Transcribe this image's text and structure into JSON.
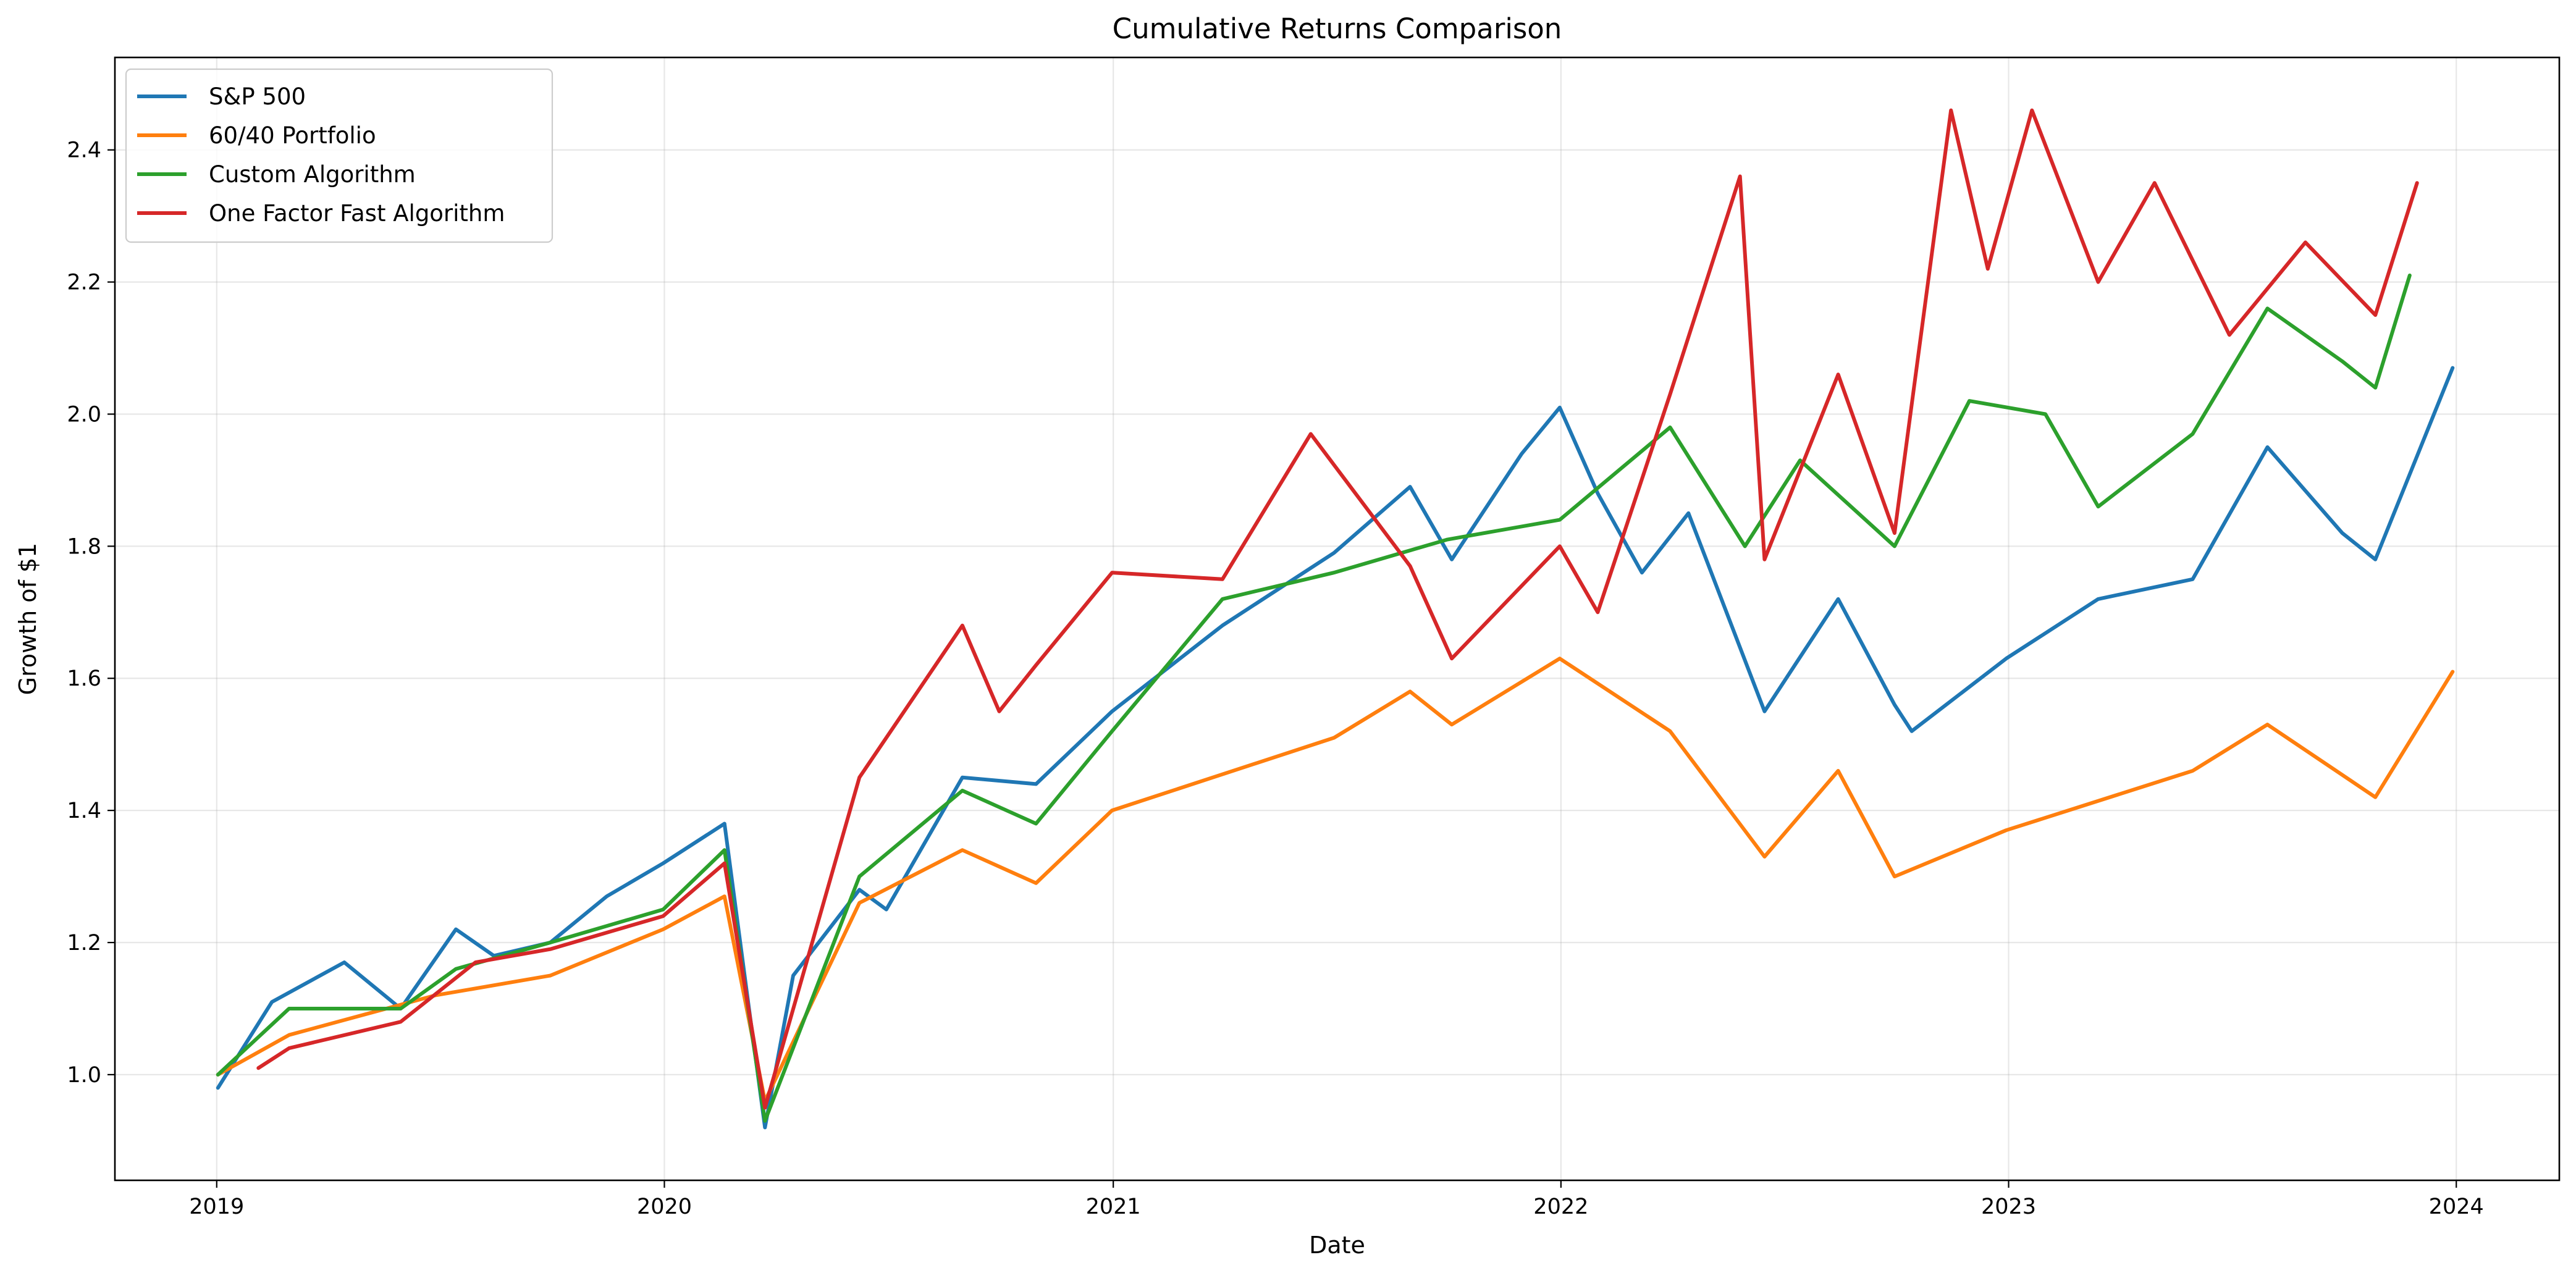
{
  "chart_data": {
    "type": "line",
    "title": "Cumulative Returns Comparison",
    "xlabel": "Date",
    "ylabel": "Growth of $1",
    "xlim": [
      "2018-10-10",
      "2024-03-25"
    ],
    "ylim": [
      0.84,
      2.54
    ],
    "x_ticks": [
      "2019-01-01",
      "2020-01-01",
      "2021-01-01",
      "2022-01-01",
      "2023-01-01",
      "2024-01-01"
    ],
    "x_tick_labels": [
      "2019",
      "2020",
      "2021",
      "2022",
      "2023",
      "2024"
    ],
    "y_ticks": [
      1.0,
      1.2,
      1.4,
      1.6,
      1.8,
      2.0,
      2.2,
      2.4
    ],
    "y_tick_labels": [
      "1.0",
      "1.2",
      "1.4",
      "1.6",
      "1.8",
      "2.0",
      "2.2",
      "2.4"
    ],
    "grid": true,
    "legend_position": "top-left",
    "series": [
      {
        "name": "S&P 500",
        "color": "#1f77b4",
        "x": [
          "2019-01-02",
          "2019-02-15",
          "2019-04-15",
          "2019-05-31",
          "2019-07-15",
          "2019-08-15",
          "2019-09-30",
          "2019-11-15",
          "2019-12-31",
          "2020-02-19",
          "2020-03-10",
          "2020-03-23",
          "2020-04-15",
          "2020-06-08",
          "2020-06-30",
          "2020-08-31",
          "2020-10-30",
          "2020-12-31",
          "2021-03-31",
          "2021-06-30",
          "2021-08-31",
          "2021-10-04",
          "2021-11-30",
          "2021-12-31",
          "2022-01-31",
          "2022-03-08",
          "2022-04-15",
          "2022-06-16",
          "2022-08-15",
          "2022-09-30",
          "2022-10-14",
          "2022-12-30",
          "2023-03-15",
          "2023-05-31",
          "2023-07-31",
          "2023-09-30",
          "2023-10-27",
          "2023-12-29"
        ],
        "values": [
          0.98,
          1.11,
          1.17,
          1.1,
          1.22,
          1.18,
          1.2,
          1.27,
          1.32,
          1.38,
          1.1,
          0.92,
          1.15,
          1.28,
          1.25,
          1.45,
          1.44,
          1.55,
          1.68,
          1.79,
          1.89,
          1.78,
          1.94,
          2.01,
          1.88,
          1.76,
          1.85,
          1.55,
          1.72,
          1.56,
          1.52,
          1.63,
          1.72,
          1.75,
          1.95,
          1.82,
          1.78,
          2.07
        ]
      },
      {
        "name": "60/40 Portfolio",
        "color": "#ff7f0e",
        "x": [
          "2019-01-02",
          "2019-03-01",
          "2019-06-28",
          "2019-09-30",
          "2019-12-31",
          "2020-02-19",
          "2020-03-23",
          "2020-06-08",
          "2020-08-31",
          "2020-10-30",
          "2020-12-31",
          "2021-06-30",
          "2021-08-31",
          "2021-10-04",
          "2021-12-31",
          "2022-03-31",
          "2022-06-16",
          "2022-08-15",
          "2022-09-30",
          "2022-12-30",
          "2023-05-31",
          "2023-07-31",
          "2023-10-27",
          "2023-12-29"
        ],
        "values": [
          1.0,
          1.06,
          1.12,
          1.15,
          1.22,
          1.27,
          0.96,
          1.26,
          1.34,
          1.29,
          1.4,
          1.51,
          1.58,
          1.53,
          1.63,
          1.52,
          1.33,
          1.46,
          1.3,
          1.37,
          1.46,
          1.53,
          1.42,
          1.61
        ]
      },
      {
        "name": "Custom Algorithm",
        "color": "#2ca02c",
        "x": [
          "2019-01-02",
          "2019-03-01",
          "2019-05-31",
          "2019-07-15",
          "2019-09-30",
          "2019-12-31",
          "2020-02-19",
          "2020-03-23",
          "2020-06-08",
          "2020-08-31",
          "2020-10-30",
          "2020-12-31",
          "2021-03-31",
          "2021-06-30",
          "2021-09-30",
          "2021-12-31",
          "2022-03-31",
          "2022-05-31",
          "2022-07-15",
          "2022-09-30",
          "2022-11-30",
          "2023-01-31",
          "2023-03-15",
          "2023-05-31",
          "2023-07-31",
          "2023-09-30",
          "2023-10-27",
          "2023-11-24"
        ],
        "values": [
          1.0,
          1.1,
          1.1,
          1.16,
          1.2,
          1.25,
          1.34,
          0.93,
          1.3,
          1.43,
          1.38,
          1.52,
          1.72,
          1.76,
          1.81,
          1.84,
          1.98,
          1.8,
          1.93,
          1.8,
          2.02,
          2.0,
          1.86,
          1.97,
          2.16,
          2.08,
          2.04,
          2.21
        ]
      },
      {
        "name": "One Factor Fast Algorithm",
        "color": "#d62728",
        "x": [
          "2019-02-04",
          "2019-03-01",
          "2019-05-31",
          "2019-07-31",
          "2019-09-30",
          "2019-12-31",
          "2020-02-19",
          "2020-03-23",
          "2020-06-08",
          "2020-08-31",
          "2020-09-30",
          "2020-10-30",
          "2020-12-31",
          "2021-03-31",
          "2021-06-11",
          "2021-08-31",
          "2021-10-04",
          "2021-12-31",
          "2022-01-31",
          "2022-03-31",
          "2022-05-27",
          "2022-06-16",
          "2022-08-15",
          "2022-09-30",
          "2022-11-15",
          "2022-12-15",
          "2023-01-20",
          "2023-03-15",
          "2023-04-30",
          "2023-06-30",
          "2023-08-31",
          "2023-10-27",
          "2023-11-30"
        ],
        "values": [
          1.01,
          1.04,
          1.08,
          1.17,
          1.19,
          1.24,
          1.32,
          0.95,
          1.45,
          1.68,
          1.55,
          1.62,
          1.76,
          1.75,
          1.97,
          1.77,
          1.63,
          1.8,
          1.7,
          2.03,
          2.36,
          1.78,
          2.06,
          1.82,
          2.46,
          2.22,
          2.46,
          2.2,
          2.35,
          2.12,
          2.26,
          2.15,
          2.35
        ]
      }
    ]
  }
}
